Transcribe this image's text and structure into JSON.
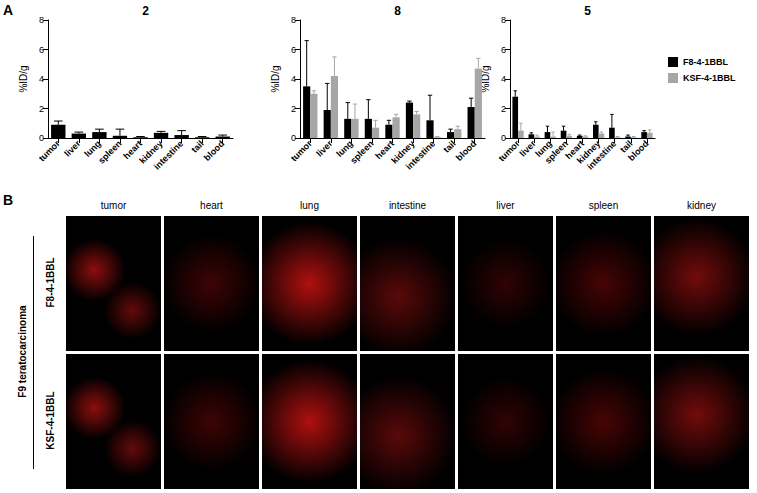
{
  "panel_labels": [
    "A",
    "B"
  ],
  "chart_data": [
    {
      "type": "bar",
      "title": "2",
      "y_label": "%ID/g",
      "categories": [
        "tumor",
        "liver",
        "lung",
        "spleen",
        "heart",
        "kidney",
        "intestine",
        "tail",
        "blood"
      ],
      "ylim": [
        0,
        8
      ],
      "yticks": [
        0,
        2,
        4,
        6,
        8
      ],
      "grid": false,
      "series": [
        {
          "name": "F8-4-1BBL",
          "color": "#000000",
          "values": [
            0.9,
            0.3,
            0.4,
            0.15,
            0.05,
            0.35,
            0.2,
            0.05,
            0.1
          ],
          "errors": [
            0.25,
            0.1,
            0.2,
            0.45,
            0.05,
            0.1,
            0.3,
            0.05,
            0.1
          ]
        }
      ]
    },
    {
      "type": "bar",
      "title": "8",
      "y_label": "%ID/g",
      "categories": [
        "tumor",
        "liver",
        "lung",
        "spleen",
        "heart",
        "kidney",
        "intestine",
        "tail",
        "blood"
      ],
      "ylim": [
        0,
        8
      ],
      "yticks": [
        0,
        2,
        4,
        6,
        8
      ],
      "grid": false,
      "series": [
        {
          "name": "F8-4-1BBL",
          "color": "#000000",
          "values": [
            3.5,
            1.9,
            1.3,
            1.3,
            0.9,
            2.4,
            1.2,
            0.4,
            2.1
          ],
          "errors": [
            3.1,
            1.8,
            1.1,
            1.3,
            0.3,
            0.1,
            1.7,
            0.2,
            0.6
          ]
        },
        {
          "name": "KSF-4-1BBL",
          "color": "#a6a6a6",
          "values": [
            3.0,
            4.2,
            1.3,
            0.7,
            1.4,
            1.6,
            0.05,
            0.6,
            4.7
          ],
          "errors": [
            0.2,
            1.3,
            1.0,
            0.5,
            0.2,
            0.2,
            0.05,
            0.2,
            0.7
          ]
        }
      ]
    },
    {
      "type": "bar",
      "title": "5",
      "y_label": "%ID/g",
      "categories": [
        "tumor",
        "liver",
        "lung",
        "spleen",
        "heart",
        "kidney",
        "intestine",
        "tail",
        "blood"
      ],
      "ylim": [
        0,
        8
      ],
      "yticks": [
        0,
        2,
        4,
        6,
        8
      ],
      "grid": false,
      "legend": "right",
      "series": [
        {
          "name": "F8-4-1BBL",
          "color": "#000000",
          "values": [
            2.8,
            0.25,
            0.4,
            0.5,
            0.15,
            0.9,
            0.7,
            0.1,
            0.4
          ],
          "errors": [
            0.4,
            0.1,
            0.4,
            0.3,
            0.05,
            0.2,
            0.9,
            0.1,
            0.1
          ]
        },
        {
          "name": "KSF-4-1BBL",
          "color": "#a6a6a6",
          "values": [
            0.5,
            0.1,
            0.1,
            0.15,
            0.1,
            0.3,
            0.05,
            0.05,
            0.35
          ],
          "errors": [
            0.5,
            0.1,
            0.3,
            0.1,
            0.05,
            0.1,
            0.05,
            0.05,
            0.2
          ]
        }
      ]
    }
  ],
  "image_grid": {
    "group_label": "F9 teratocarcinoma",
    "columns": [
      "tumor",
      "heart",
      "lung",
      "intestine",
      "liver",
      "spleen",
      "kidney"
    ],
    "rows": [
      "F8-4-1BBL",
      "KSF-4-1BBL"
    ]
  }
}
